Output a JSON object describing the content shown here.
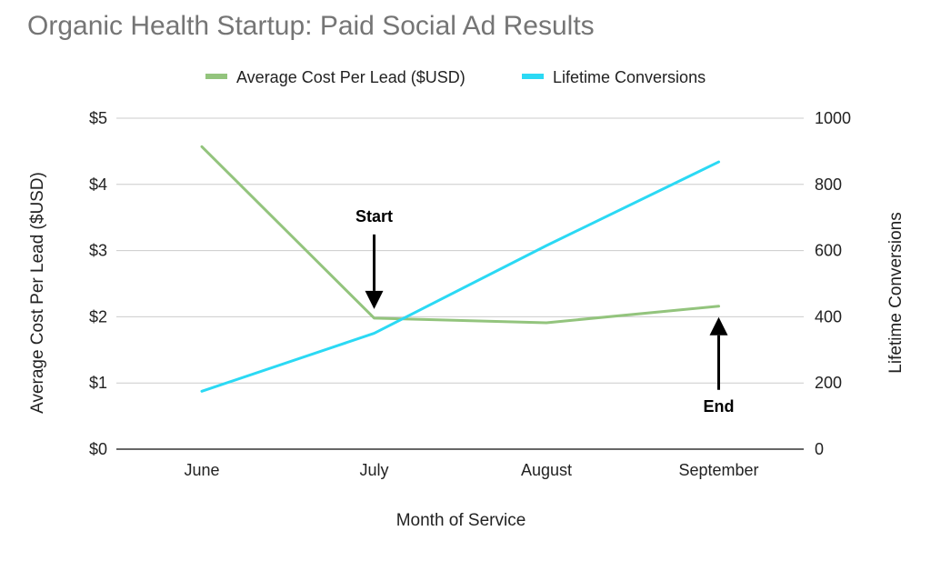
{
  "chart_data": {
    "type": "line",
    "title": "Organic Health Startup: Paid Social Ad Results",
    "categories": [
      "June",
      "July",
      "August",
      "September"
    ],
    "xlabel": "Month of Service",
    "ylabel_left": "Average Cost Per Lead ($USD)",
    "ylabel_right": "Lifetime Conversions",
    "y_left": {
      "min": 0,
      "max": 5,
      "ticks": [
        0,
        1,
        2,
        3,
        4,
        5
      ],
      "tick_labels": [
        "$0",
        "$1",
        "$2",
        "$3",
        "$4",
        "$5"
      ]
    },
    "y_right": {
      "min": 0,
      "max": 1000,
      "ticks": [
        0,
        200,
        400,
        600,
        800,
        1000
      ],
      "tick_labels": [
        "0",
        "200",
        "400",
        "600",
        "800",
        "1000"
      ]
    },
    "grid": true,
    "legend_position": "top",
    "series": [
      {
        "name": "Average Cost Per Lead ($USD)",
        "axis": "left",
        "color": "#93c47d",
        "values": [
          4.57,
          1.98,
          1.91,
          2.16
        ]
      },
      {
        "name": "Lifetime Conversions",
        "axis": "right",
        "color": "#2bd9f4",
        "values": [
          175,
          350,
          615,
          868
        ]
      }
    ],
    "annotations": [
      {
        "text": "Start",
        "category": "July",
        "direction": "down"
      },
      {
        "text": "End",
        "category": "September",
        "direction": "up"
      }
    ]
  }
}
